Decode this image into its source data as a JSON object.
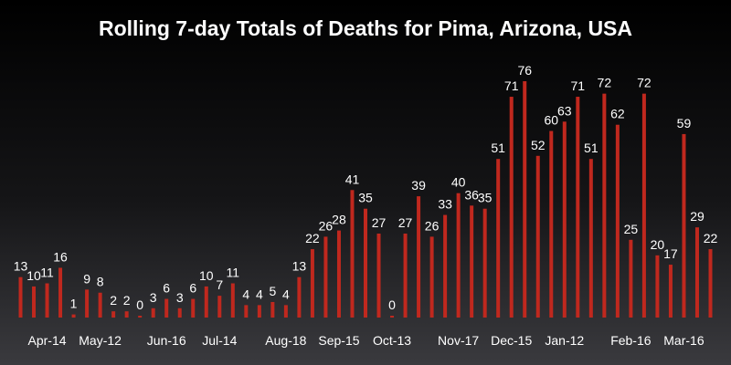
{
  "chart_data": {
    "type": "bar",
    "title": "Rolling 7-day Totals of Deaths for Pima, Arizona, USA",
    "xlabel": "",
    "ylabel": "",
    "ylim": [
      0,
      80
    ],
    "grid": false,
    "legend": "none",
    "bar_color": "#c0281e",
    "tick_labels": [
      {
        "label": "Apr-14",
        "index": 2
      },
      {
        "label": "May-12",
        "index": 6
      },
      {
        "label": "Jun-16",
        "index": 11
      },
      {
        "label": "Jul-14",
        "index": 15
      },
      {
        "label": "Aug-18",
        "index": 20
      },
      {
        "label": "Sep-15",
        "index": 24
      },
      {
        "label": "Oct-13",
        "index": 28
      },
      {
        "label": "Nov-17",
        "index": 33
      },
      {
        "label": "Dec-15",
        "index": 37
      },
      {
        "label": "Jan-12",
        "index": 41
      },
      {
        "label": "Feb-16",
        "index": 46
      },
      {
        "label": "Mar-16",
        "index": 50
      }
    ],
    "values": [
      13,
      10,
      11,
      16,
      1,
      9,
      8,
      2,
      2,
      0,
      3,
      6,
      3,
      6,
      10,
      7,
      11,
      4,
      4,
      5,
      4,
      13,
      22,
      26,
      28,
      41,
      35,
      27,
      0,
      27,
      39,
      26,
      33,
      40,
      36,
      35,
      51,
      71,
      76,
      52,
      60,
      63,
      71,
      51,
      72,
      62,
      25,
      72,
      20,
      17,
      59,
      29,
      22
    ]
  }
}
